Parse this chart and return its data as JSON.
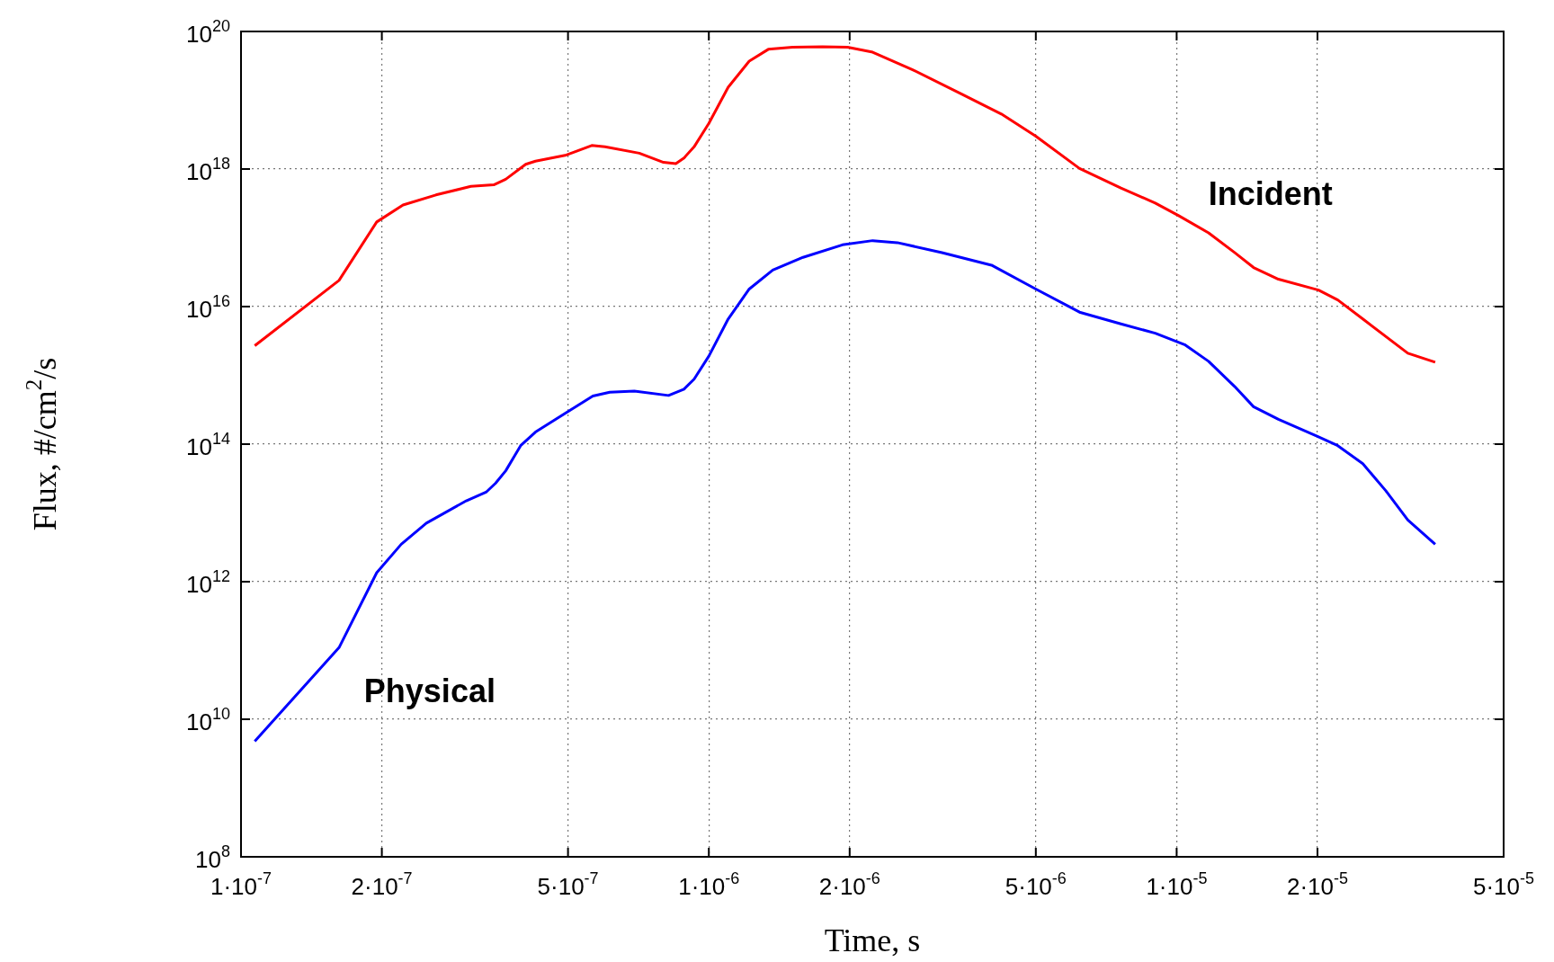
{
  "chart_data": {
    "type": "line",
    "xlabel": "Time, s",
    "ylabel": "Flux, #/cm$^{2}$/s",
    "log": "xy",
    "grid": true,
    "marker": "none",
    "line_style": "solid",
    "xlim": [
      1e-07,
      5e-05
    ],
    "ylim": [
      100000000.0,
      1e+20
    ],
    "xticks": [
      {
        "value": 1e-07,
        "label": "1·10$^{-7}$"
      },
      {
        "value": 2e-07,
        "label": "2·10$^{-7}$"
      },
      {
        "value": 5e-07,
        "label": "5·10$^{-7}$"
      },
      {
        "value": 1e-06,
        "label": "1·10$^{-6}$"
      },
      {
        "value": 2e-06,
        "label": "2·10$^{-6}$"
      },
      {
        "value": 5e-06,
        "label": "5·10$^{-6}$"
      },
      {
        "value": 1e-05,
        "label": "1·10$^{-5}$"
      },
      {
        "value": 2e-05,
        "label": "2·10$^{-5}$"
      },
      {
        "value": 5e-05,
        "label": "5·10$^{-5}$"
      }
    ],
    "yticks": [
      {
        "value": 100000000.0,
        "label": "10$^{8}$"
      },
      {
        "value": 10000000000.0,
        "label": "10$^{10}$"
      },
      {
        "value": 1000000000000.0,
        "label": "10$^{12}$"
      },
      {
        "value": 100000000000000.0,
        "label": "10$^{14}$"
      },
      {
        "value": 1e+16,
        "label": "10$^{16}$"
      },
      {
        "value": 1e+18,
        "label": "10$^{18}$"
      },
      {
        "value": 1e+20,
        "label": "10$^{20}$"
      }
    ],
    "series": [
      {
        "name": "Incident",
        "color": "#ff0000",
        "x": [
          1.07e-07,
          1.62e-07,
          1.95e-07,
          2.22e-07,
          2.61e-07,
          3.1e-07,
          3.47e-07,
          3.68e-07,
          4.06e-07,
          4.26e-07,
          4.93e-07,
          5.62e-07,
          6e-07,
          7.1e-07,
          8e-07,
          8.5e-07,
          8.85e-07,
          9.3e-07,
          1e-06,
          1.1e-06,
          1.22e-06,
          1.34e-06,
          1.51e-06,
          1.75e-06,
          1.98e-06,
          2.24e-06,
          2.72e-06,
          3.47e-06,
          4.22e-06,
          5e-06,
          6.2e-06,
          7.6e-06,
          9e-06,
          1.01e-05,
          1.17e-05,
          1.33e-05,
          1.46e-05,
          1.65e-05,
          2.01e-05,
          2.21e-05,
          2.5e-05,
          3.12e-05,
          3.57e-05
        ],
        "values": [
          2700000000000000.0,
          2.4e+16,
          1.7e+17,
          3e+17,
          4.2e+17,
          5.6e+17,
          5.9e+17,
          7.1e+17,
          1.17e+18,
          1.3e+18,
          1.58e+18,
          2.2e+18,
          2.1e+18,
          1.7e+18,
          1.25e+18,
          1.2e+18,
          1.45e+18,
          2.1e+18,
          4.6e+18,
          1.55e+19,
          3.7e+19,
          5.5e+19,
          5.9e+19,
          6e+19,
          5.9e+19,
          5e+19,
          2.8e+19,
          1.23e+19,
          6.3e+18,
          3e+18,
          1.02e+18,
          5.3e+17,
          3.2e+17,
          2.1e+17,
          1.18e+17,
          6.1e+16,
          3.7e+16,
          2.5e+16,
          1.74e+16,
          1.25e+16,
          6600000000000000.0,
          2100000000000000.0,
          1550000000000000.0
        ]
      },
      {
        "name": "Physical",
        "color": "#0000ff",
        "x": [
          1.07e-07,
          1.62e-07,
          1.95e-07,
          2.2e-07,
          2.49e-07,
          3.03e-07,
          3.34e-07,
          3.5e-07,
          3.68e-07,
          3.96e-07,
          4.26e-07,
          4.93e-07,
          5.65e-07,
          6.14e-07,
          6.93e-07,
          8.2e-07,
          8.85e-07,
          9.3e-07,
          1e-06,
          1.1e-06,
          1.22e-06,
          1.37e-06,
          1.59e-06,
          1.93e-06,
          2.24e-06,
          2.53e-06,
          3.15e-06,
          4.02e-06,
          5e-06,
          6.2e-06,
          7.6e-06,
          9e-06,
          1.04e-05,
          1.17e-05,
          1.33e-05,
          1.46e-05,
          1.65e-05,
          2e-05,
          2.21e-05,
          2.5e-05,
          2.8e-05,
          3.12e-05,
          3.57e-05
        ],
        "values": [
          4800000000.0,
          110000000000.0,
          1350000000000.0,
          3500000000000.0,
          7100000000000.0,
          15000000000000.0,
          20000000000000.0,
          27000000000000.0,
          41000000000000.0,
          95000000000000.0,
          150000000000000.0,
          280000000000000.0,
          500000000000000.0,
          570000000000000.0,
          590000000000000.0,
          510000000000000.0,
          630000000000000.0,
          880000000000000.0,
          1900000000000000.0,
          6600000000000000.0,
          1.8e+16,
          3.4e+16,
          5.2e+16,
          7.9e+16,
          9.1e+16,
          8.5e+16,
          6.1e+16,
          4e+16,
          1.8e+16,
          8300000000000000.0,
          5600000000000000.0,
          4100000000000000.0,
          2800000000000000.0,
          1600000000000000.0,
          690000000000000.0,
          350000000000000.0,
          230000000000000.0,
          130000000000000.0,
          95000000000000.0,
          52000000000000.0,
          21000000000000.0,
          7900000000000.0,
          3500000000000.0
        ]
      }
    ]
  }
}
